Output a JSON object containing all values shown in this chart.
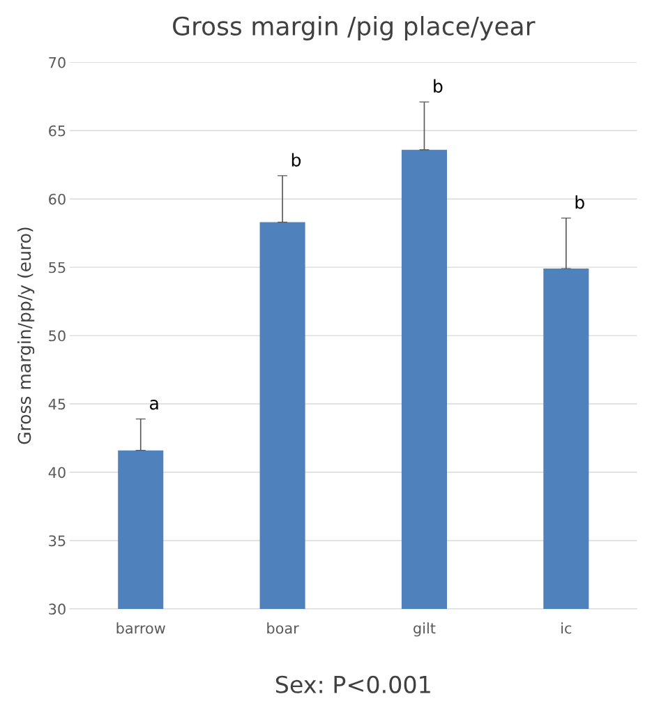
{
  "chart_data": {
    "type": "bar",
    "title": "Gross margin /pig place/year",
    "xlabel": "Sex: P<0.001",
    "ylabel": "Gross margin/pp/y (euro)",
    "categories": [
      "barrow",
      "boar",
      "gilt",
      "ic"
    ],
    "values": [
      41.6,
      58.3,
      63.6,
      54.9
    ],
    "errors": [
      [
        41.6,
        43.9
      ],
      [
        58.3,
        61.7
      ],
      [
        63.6,
        67.1
      ],
      [
        54.9,
        58.6
      ]
    ],
    "color": "#4f81bd",
    "ylim": [
      30,
      70
    ],
    "yticks": [
      30,
      35,
      40,
      45,
      50,
      55,
      60,
      65,
      70
    ],
    "grid": "y",
    "legend": false,
    "annotations": [
      {
        "text": "a",
        "x": "barrow",
        "y": 43.9
      },
      {
        "text": "b",
        "x": "boar",
        "y": 61.7
      },
      {
        "text": "b",
        "x": "gilt",
        "y": 67.1
      },
      {
        "text": "b",
        "x": "ic",
        "y": 58.6
      }
    ]
  }
}
